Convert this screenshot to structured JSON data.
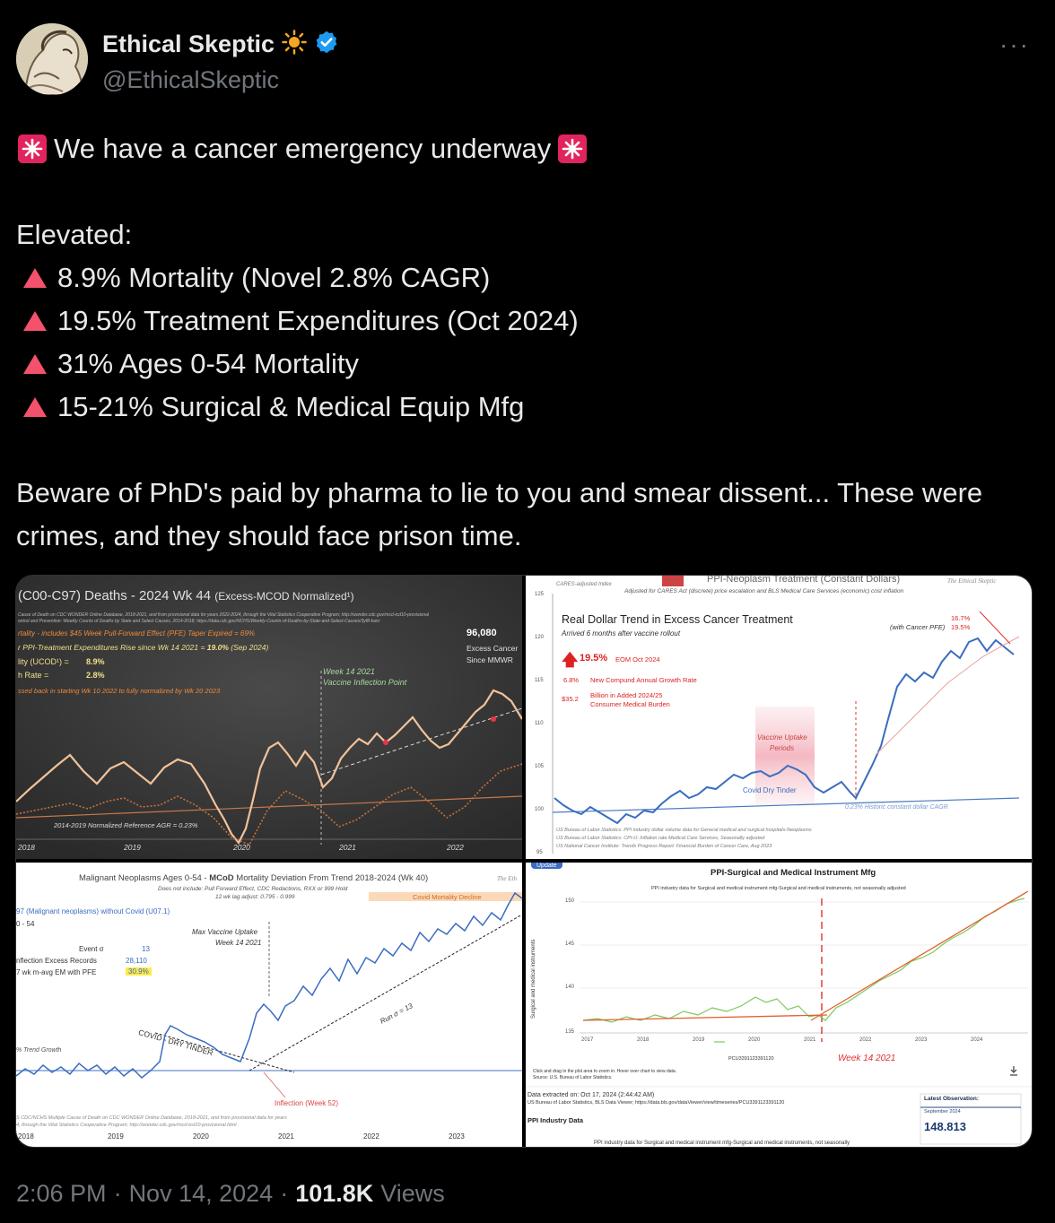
{
  "author": {
    "display_name": "Ethical Skeptic",
    "handle": "@EthicalSkeptic",
    "verified_color": "#1d9bf0",
    "sun_emoji": "☀️"
  },
  "tweet": {
    "headline": "We have a cancer emergency underway",
    "elevated_label": "Elevated:",
    "bullets": [
      "8.9% Mortality (Novel 2.8% CAGR)",
      "19.5% Treatment Expenditures (Oct 2024)",
      "31% Ages 0-54 Mortality",
      "15-21% Surgical & Medical Equip Mfg"
    ],
    "closing": "Beware of PhD's paid by pharma to lie to you and smear dissent...  These were crimes, and they should face prison time."
  },
  "media": {
    "panel1": {
      "title": "(C00-C97) Deaths - 2024 Wk 44",
      "title_suffix": "(Excess-MCOD  Normalized¹)",
      "src1": "Cause of Death on CDC WONDER Online Database, 2018-2021, and from provisional data for years 2022-2024, through the Vital Statistics Cooperative Program; http://wonder.cdc.gov/mcd-icd10-provisional",
      "src2": "ontrol and Prevention: Weekly Counts of Deaths by State and Select Causes, 2014-2018; https://data.cdc.gov/NCHS/Weekly-Counts-of-Deaths-by-State-and-Select-Causes/3yf8-kanr",
      "line1": "rtality - includes $45 Week Pull-Forward Effect (PFE) Taper Expired =  69%",
      "line2_prefix": "r PPI-Treatment Expenditures Rise since Wk 14 2021 = ",
      "line2_value": "19.0%",
      "line2_suffix": "(Sep 2024)",
      "line3_label": "lity (UCOD¹) =",
      "line3_value": "8.9%",
      "line4_label": "h  Rate  =",
      "line4_value": "2.8%",
      "line5": "ssed back in starting  Wk 10 2022 to fully normalized  by Wk 20 2023",
      "big_number": "96,080",
      "big_sub1": "Excess Cancer",
      "big_sub2": "Since MMWR",
      "week_label": "Week 14 2021",
      "week_sub": "Vaccine Inflection Point",
      "ref_label": "2014-2019 Normalized Reference AGR = 0.23%",
      "years": [
        "2018",
        "2019",
        "2020",
        "2021",
        "2022"
      ]
    },
    "panel2": {
      "header_small": "CARES-adjusted Index",
      "header_title": "PPI-Neoplasm Treatment (Constant Dollars)",
      "header_sub": "Adjusted for CARES Act (discrete) price escalation and BLS Medical Care Services (economic) cost inflation",
      "brand": "The Ethical Skeptic",
      "title": "Real Dollar Trend in Excess Cancer Treatment",
      "subtitle": "Arrived 6 months after vaccine rollout",
      "stat1_value": "19.5%",
      "stat1_label": "EOM Oct 2024",
      "stat2_value": "6.8%",
      "stat2_label": "New Compund Annual Growth Rate",
      "stat3_value": "$35.2",
      "stat3_label1": "Billion in Added 2024/25",
      "stat3_label2": "Consumer Medical Burden",
      "with_pfe": "(with Cancer PFE)",
      "pct_a": "16.7%",
      "pct_b": "19.5%",
      "uptake1": "Vaccine Uptake",
      "uptake2": "Periods",
      "covid_label": "Covid Dry Tinder",
      "cagr_label": "0.23%  Historic constant dollar CAGR",
      "yticks": [
        "125",
        "120",
        "115",
        "110",
        "105",
        "100",
        "95"
      ],
      "src1": "US Bureau of Labor Statistics: PPI industry dollar volume data for General medical and surgical hospitals-Neoplasms",
      "src2": "US Bureau of Labor Statistics: CPI-U: Inflation rate Medical Care Services, Seasonally adjusted",
      "src3": "US National Cancer Institute: Trends Progress Report: Financial Burden of Cancer Care, Aug 2023"
    },
    "panel3": {
      "title_prefix": "Malignant Neoplasms Ages 0-54 - ",
      "title_bold": "MCoD",
      "title_suffix": " Mortality Deviation From Trend  2018-2024 (Wk 40)",
      "sub1": "Does not include: Pull Forward Effect,  CDC Redactions, RXX or 999 Hold",
      "sub2": "12 wk lag adjust: 0.795 - 0.999",
      "brand": "The Eth",
      "decline_label": "Covid Mortality Decline",
      "series_label": "97 (Malignant neoplasms) without Covid (U07.1)",
      "age_label": "0 - 54",
      "event_label": "Event σ",
      "event_value": "13",
      "inflection_label": "nflection Excess Records",
      "inflection_value": "28,110",
      "avg_label": "7 wk m-avg EM with PFE",
      "avg_value": "30.9%",
      "max_uptake1": "Max Vaccine Uptake",
      "max_uptake2": "Week 14 2021",
      "run_label": "Run σ = 13",
      "tinder_label": "COVID - DRY TINDER",
      "trend_label": "% Trend Growth",
      "inflection_week": "Inflection (Week 52)",
      "src1": "S CDC/NCHS Multiple Cause of Death on CDC WONDER Online Database, 2018-2021, and from provisional data for years",
      "src2": "4, through the Vital Statistics Cooperative Program; http://wonder.cdc.gov/mcd-icd10-provisional.html",
      "years": [
        "2018",
        "2019",
        "2020",
        "2021",
        "2022",
        "2023"
      ]
    },
    "panel4": {
      "update_badge": "Update",
      "title": "PPI-Surgical and Medical Instrument Mfg",
      "subtitle": "PPI industry data for Surgical and medical instrument mfg-Surgical and medical instruments, not seasonally adjusted",
      "ylabel": "Surgical and medical instruments",
      "yticks": [
        "150",
        "145",
        "140",
        "135"
      ],
      "years": [
        "2017",
        "2018",
        "2019",
        "2020",
        "2021",
        "2022",
        "2023",
        "2024"
      ],
      "legend": "PCU3391123391120",
      "week_label": "Week 14 2021",
      "click_note": "Click and drag in the plot area to zoom in.  Hover over chart to view data.",
      "source_note": "Source: U.S. Bureau of Labor Statistics.",
      "extracted": "Data extracted on: Oct 17, 2024 (2:44:42 AM)",
      "bls_line": "US Bureau of Labor Statistics, BLS Data Viewer; https://data.bls.gov/dataViewer/view/timeseries/PCU3391123391120",
      "industry_label": "PPI Industry Data",
      "bottom_text": "PPI industry data for Surgical and medical instrument mfg-Surgical and medical instruments, not seasonally",
      "latest_label": "Latest Observation:",
      "latest_date": "September 2024",
      "latest_value": "148.813"
    }
  },
  "footer": {
    "time": "2:06 PM",
    "dot": "·",
    "date": "Nov 14, 2024",
    "views": "101.8K",
    "views_label": "Views"
  }
}
